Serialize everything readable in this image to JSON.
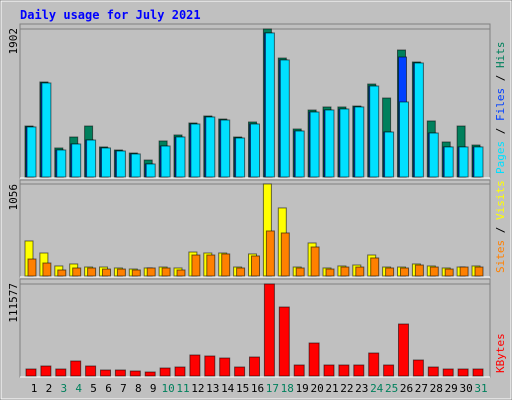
{
  "chart_data": {
    "type": "bar",
    "title": "Daily usage for July 2021",
    "categories": [
      "1",
      "2",
      "3",
      "4",
      "5",
      "6",
      "7",
      "8",
      "9",
      "10",
      "11",
      "12",
      "13",
      "14",
      "15",
      "16",
      "17",
      "18",
      "19",
      "20",
      "21",
      "22",
      "23",
      "24",
      "25",
      "26",
      "27",
      "28",
      "29",
      "30",
      "31"
    ],
    "category_colors": [
      "#000000",
      "#000000",
      "#00805c",
      "#00805c",
      "#000000",
      "#000000",
      "#000000",
      "#000000",
      "#000000",
      "#00805c",
      "#00805c",
      "#000000",
      "#000000",
      "#000000",
      "#000000",
      "#000000",
      "#00805c",
      "#00805c",
      "#000000",
      "#000000",
      "#000000",
      "#000000",
      "#000000",
      "#00805c",
      "#00805c",
      "#000000",
      "#000000",
      "#000000",
      "#000000",
      "#000000",
      "#00805c"
    ],
    "legend_separator": " / ",
    "panels": [
      {
        "ylim": [
          0,
          1902
        ],
        "yticks": [
          1902
        ],
        "series": [
          {
            "name": "Hits",
            "color": "#00805c",
            "values": [
              655,
              1221,
              373,
              514,
              655,
              386,
              347,
              308,
              218,
              463,
              540,
              694,
              784,
              745,
              514,
              707,
              1902,
              1529,
              617,
              861,
              900,
              900,
              912,
              1195,
              1015,
              1632,
              1478,
              720,
              450,
              655,
              411
            ]
          },
          {
            "name": "Files",
            "color": "#0040ff",
            "values": [
              643,
              1208,
              347,
              424,
              475,
              373,
              334,
              296,
              167,
              398,
              514,
              681,
              771,
              732,
              501,
              681,
              1851,
              1504,
              591,
              835,
              861,
              874,
              900,
              1169,
              578,
              1542,
              1465,
              565,
              386,
              386,
              386
            ]
          },
          {
            "name": "Pages",
            "color": "#00e0ff",
            "values": [
              643,
              1208,
              347,
              424,
              475,
              373,
              334,
              296,
              167,
              398,
              514,
              681,
              771,
              732,
              501,
              681,
              1851,
              1504,
              591,
              835,
              861,
              874,
              900,
              1169,
              578,
              964,
              1465,
              565,
              386,
              386,
              386
            ]
          }
        ]
      },
      {
        "ylim": [
          0,
          1056
        ],
        "yticks": [
          1056
        ],
        "series": [
          {
            "name": "Visits",
            "color": "#ffff00",
            "values": [
              402,
              264,
              115,
              138,
              103,
              103,
              92,
              80,
              92,
              103,
              92,
              275,
              264,
              264,
              103,
              253,
              1056,
              781,
              103,
              379,
              92,
              115,
              126,
              241,
              103,
              103,
              138,
              115,
              92,
              103,
              115
            ]
          },
          {
            "name": "Sites",
            "color": "#ff8000",
            "values": [
              195,
              149,
              69,
              92,
              92,
              80,
              80,
              69,
              92,
              92,
              69,
              241,
              241,
              253,
              92,
              230,
              517,
              494,
              92,
              333,
              80,
              103,
              103,
              207,
              92,
              92,
              126,
              103,
              80,
              103,
              103
            ]
          }
        ]
      },
      {
        "ylim": [
          0,
          111577
        ],
        "yticks": [
          111577
        ],
        "series": [
          {
            "name": "KBytes",
            "color": "#ff0000",
            "values": [
              8490,
              12128,
              8490,
              18192,
              12128,
              7277,
              7277,
              6064,
              4851,
              9702,
              10915,
              25469,
              24256,
              21830,
              10915,
              23043,
              111577,
              83682,
              13341,
              40022,
              13341,
              13341,
              13341,
              27894,
              13341,
              63065,
              19405,
              10915,
              8490,
              8490,
              8490
            ]
          }
        ]
      }
    ]
  }
}
